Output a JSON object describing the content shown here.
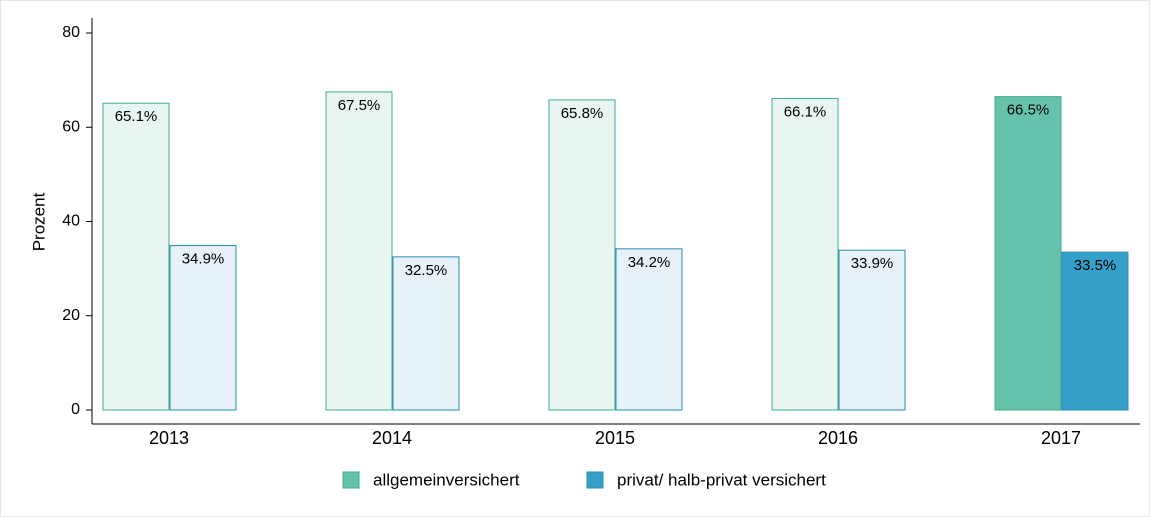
{
  "chart_data": {
    "type": "bar",
    "y_label": "Prozent",
    "categories": [
      "2013",
      "2014",
      "2015",
      "2016",
      "2017"
    ],
    "series": [
      {
        "name": "allgemeinversichert",
        "color": "#66c2ab",
        "stroke": "#3fae8c",
        "colors": [
          "#e8f5f1",
          "#e8f5f1",
          "#e8f5f1",
          "#e8f5f1",
          "#66c2ab"
        ],
        "values": [
          65.1,
          67.5,
          65.8,
          66.1,
          66.5
        ],
        "value_labels": [
          "65.1%",
          "67.5%",
          "65.8%",
          "66.1%",
          "66.5%"
        ]
      },
      {
        "name": "privat/ halb-privat versichert",
        "color": "#35a0c9",
        "stroke": "#2a8db5",
        "colors": [
          "#e6f2f8",
          "#e6f2f8",
          "#e6f2f8",
          "#e6f2f8",
          "#35a0c9"
        ],
        "values": [
          34.9,
          32.5,
          34.2,
          33.9,
          33.5
        ],
        "value_labels": [
          "34.9%",
          "32.5%",
          "34.2%",
          "33.9%",
          "33.5%"
        ]
      }
    ],
    "ylim": [
      0,
      80
    ],
    "yticks": [
      0,
      20,
      40,
      60,
      80
    ],
    "grid": false,
    "legend": "bottom"
  }
}
